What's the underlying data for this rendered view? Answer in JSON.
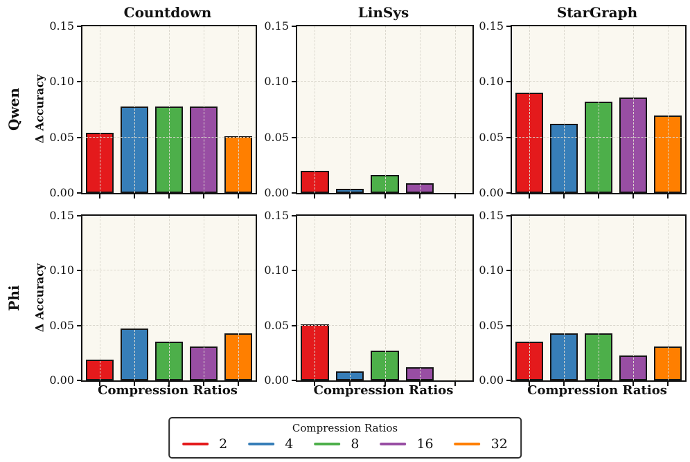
{
  "figure": {
    "plot_background": "#faf8f0",
    "grid_color": "#dbd8ce",
    "bar_edge_color": "#151515",
    "spine_color": "#111111"
  },
  "chart_data": {
    "type": "bar",
    "rows": [
      "Qwen",
      "Phi"
    ],
    "cols": [
      "Countdown",
      "LinSys",
      "StarGraph"
    ],
    "categories": [
      "2",
      "4",
      "8",
      "16",
      "32"
    ],
    "colors": [
      "#e41a1c",
      "#377eb8",
      "#4daf4a",
      "#984ea3",
      "#ff7f00"
    ],
    "ylabel": "Δ Accuracy",
    "xlabel": "Compression Ratios",
    "ylim": [
      0,
      0.15
    ],
    "yticks": [
      0.0,
      0.05,
      0.1,
      0.15
    ],
    "ytick_labels": [
      "0.00",
      "0.05",
      "0.10",
      "0.15"
    ],
    "grid": "dashed, drawn over bars, horizontal at 0.05/0.10 and vertical at bar centers",
    "subplots": [
      {
        "row": "Qwen",
        "col": "Countdown",
        "values": [
          0.054,
          0.078,
          0.078,
          0.078,
          0.051
        ]
      },
      {
        "row": "Qwen",
        "col": "LinSys",
        "values": [
          0.02,
          0.004,
          0.016,
          0.009,
          0.0
        ]
      },
      {
        "row": "Qwen",
        "col": "StarGraph",
        "values": [
          0.09,
          0.062,
          0.082,
          0.086,
          0.07
        ]
      },
      {
        "row": "Phi",
        "col": "Countdown",
        "values": [
          0.019,
          0.047,
          0.035,
          0.031,
          0.043
        ]
      },
      {
        "row": "Phi",
        "col": "LinSys",
        "values": [
          0.051,
          0.008,
          0.027,
          0.012,
          0.0
        ]
      },
      {
        "row": "Phi",
        "col": "StarGraph",
        "values": [
          0.035,
          0.043,
          0.043,
          0.023,
          0.031
        ]
      }
    ],
    "legend": {
      "title": "Compression Ratios",
      "position": "bottom center",
      "entries": [
        {
          "label": "2",
          "color": "#e41a1c"
        },
        {
          "label": "4",
          "color": "#377eb8"
        },
        {
          "label": "8",
          "color": "#4daf4a"
        },
        {
          "label": "16",
          "color": "#984ea3"
        },
        {
          "label": "32",
          "color": "#ff7f00"
        }
      ]
    }
  }
}
